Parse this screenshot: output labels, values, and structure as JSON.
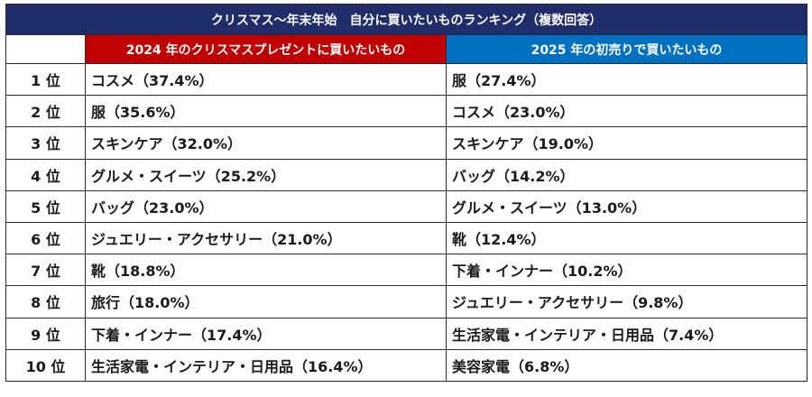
{
  "title": "クリスマス～年末年始　自分に買いたいものランキング（複数回答）",
  "headers": {
    "col2024": "2024 年のクリスマスプレゼントに買いたいもの",
    "col2025": "2025 年の初売りで買いたいもの"
  },
  "rows": [
    {
      "rank": "1 位",
      "y2024": "コスメ（37.4%）",
      "y2025": "服（27.4%）"
    },
    {
      "rank": "2 位",
      "y2024": "服（35.6%）",
      "y2025": "コスメ（23.0%）"
    },
    {
      "rank": "3 位",
      "y2024": "スキンケア（32.0%）",
      "y2025": "スキンケア（19.0%）"
    },
    {
      "rank": "4 位",
      "y2024": "グルメ・スイーツ（25.2%）",
      "y2025": "バッグ（14.2%）"
    },
    {
      "rank": "5 位",
      "y2024": "バッグ（23.0%）",
      "y2025": "グルメ・スイーツ（13.0%）"
    },
    {
      "rank": "6 位",
      "y2024": "ジュエリー・アクセサリー（21.0%）",
      "y2025": "靴（12.4%）"
    },
    {
      "rank": "7 位",
      "y2024": "靴（18.8%）",
      "y2025": "下着・インナー（10.2%）"
    },
    {
      "rank": "8 位",
      "y2024": "旅行（18.0%）",
      "y2025": "ジュエリー・アクセサリー（9.8%）"
    },
    {
      "rank": "9 位",
      "y2024": "下着・インナー（17.4%）",
      "y2025": "生活家電・インテリア・日用品（7.4%）"
    },
    {
      "rank": "10 位",
      "y2024": "生活家電・インテリア・日用品（16.4%）",
      "y2025": "美容家電（6.8%）"
    }
  ],
  "colors": {
    "title_bg": "#1f2d6b",
    "header_2024_bg": "#c00000",
    "header_2025_bg": "#0070c0"
  }
}
